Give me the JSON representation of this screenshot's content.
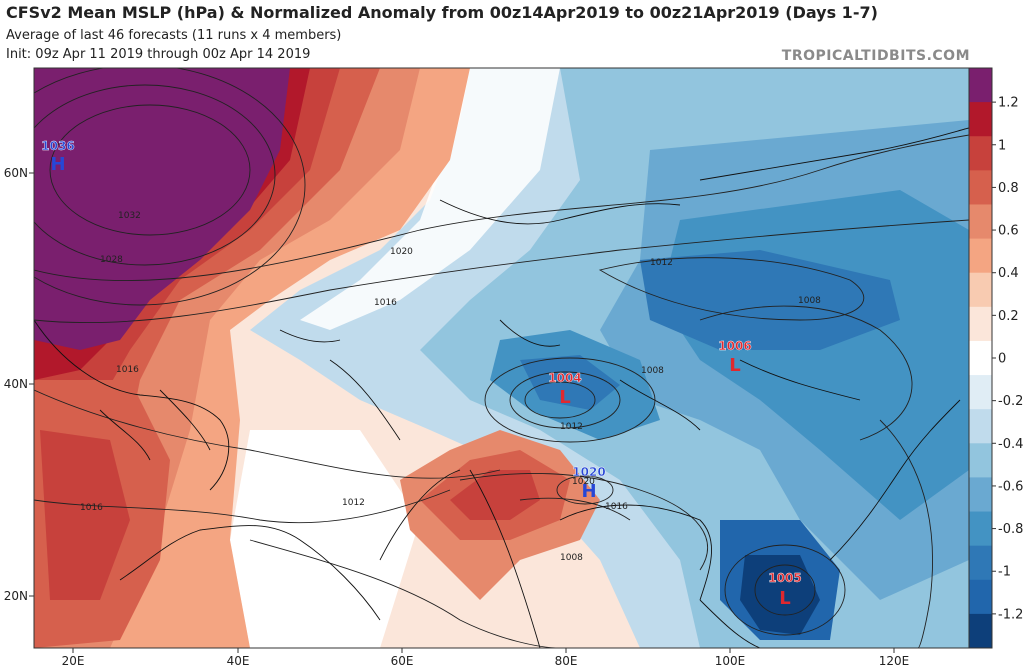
{
  "header": {
    "title": "CFSv2 Mean MSLP (hPa) & Normalized Anomaly from 00z14Apr2019 to 00z21Apr2019 (Days 1-7)",
    "subtitle_1": "Average of last 46 forecasts (11 runs x 4 members)",
    "subtitle_2": "Init: 09z Apr 11 2019 through 00z Apr 14 2019",
    "brand": "TROPICALTIDBITS.COM"
  },
  "axes": {
    "lon_labels": [
      "20E",
      "40E",
      "60E",
      "80E",
      "100E",
      "120E"
    ],
    "lat_labels": [
      "60N",
      "40N",
      "20N"
    ]
  },
  "colorbar": {
    "ticks": [
      "1.2",
      "1",
      "0.8",
      "0.6",
      "0.4",
      "0.2",
      "0",
      "-0.2",
      "-0.4",
      "-0.6",
      "-0.8",
      "-1",
      "-1.2"
    ],
    "colors": [
      "#7a1f6e",
      "#b2182b",
      "#c7413c",
      "#d6604d",
      "#e6896c",
      "#f4a582",
      "#f8cbb1",
      "#fbe6da",
      "#ffffff",
      "#e0edf5",
      "#c0dbec",
      "#92c5de",
      "#6aa9d1",
      "#4393c3",
      "#2f78b6",
      "#2166ac",
      "#0d3f7a"
    ]
  },
  "pressure_centers": [
    {
      "type": "H",
      "value": "1036",
      "color": "#2747d6"
    },
    {
      "type": "L",
      "value": "1006",
      "color": "#e0282e"
    },
    {
      "type": "L",
      "value": "1004",
      "color": "#e0282e"
    },
    {
      "type": "H",
      "value": "1020",
      "color": "#2747d6"
    },
    {
      "type": "L",
      "value": "1005",
      "color": "#e0282e"
    }
  ],
  "isobar_labels": [
    "1032",
    "1028",
    "1020",
    "1016",
    "1012",
    "1008",
    "1016",
    "1012",
    "1008",
    "1012",
    "1016",
    "1008",
    "1020",
    "1016"
  ]
}
